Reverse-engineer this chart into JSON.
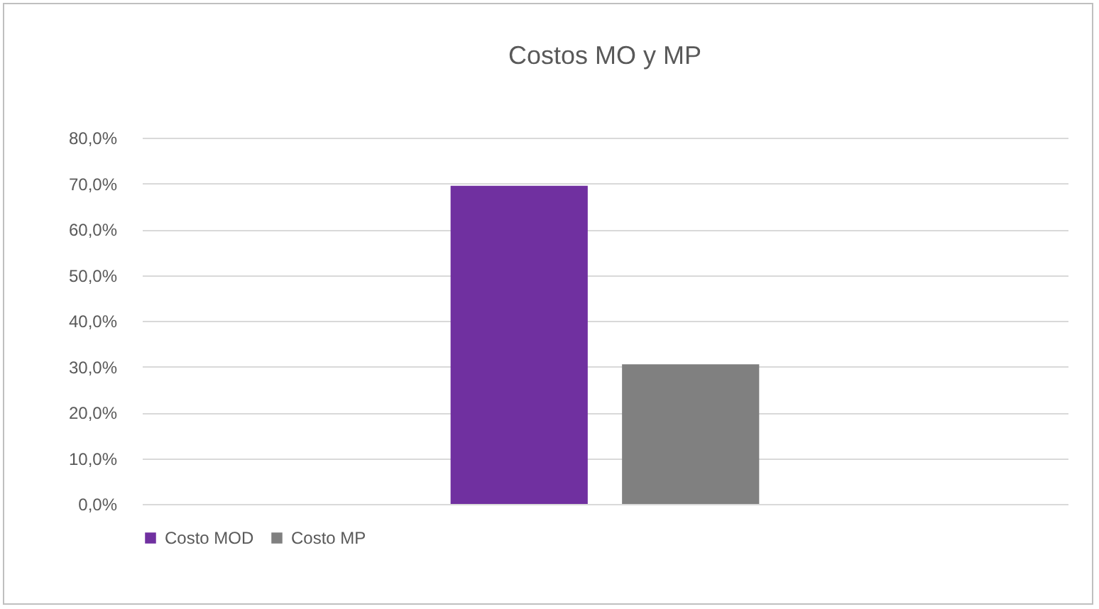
{
  "chart_data": {
    "type": "bar",
    "title": "Costos MO y MP",
    "categories": [
      null
    ],
    "series": [
      {
        "name": "Costo MOD",
        "color": "#7030a0",
        "values": [
          69.5
        ]
      },
      {
        "name": "Costo MP",
        "color": "#808080",
        "values": [
          30.5
        ]
      }
    ],
    "ylim": [
      0,
      80
    ],
    "yticks": [
      {
        "value": 0,
        "label": "0,0%"
      },
      {
        "value": 10,
        "label": "10,0%"
      },
      {
        "value": 20,
        "label": "20,0%"
      },
      {
        "value": 30,
        "label": "30,0%"
      },
      {
        "value": 40,
        "label": "40,0%"
      },
      {
        "value": 50,
        "label": "50,0%"
      },
      {
        "value": 60,
        "label": "60,0%"
      },
      {
        "value": 70,
        "label": "70,0%"
      },
      {
        "value": 80,
        "label": "80,0%"
      }
    ],
    "grid": "y",
    "legend": "bottom"
  }
}
